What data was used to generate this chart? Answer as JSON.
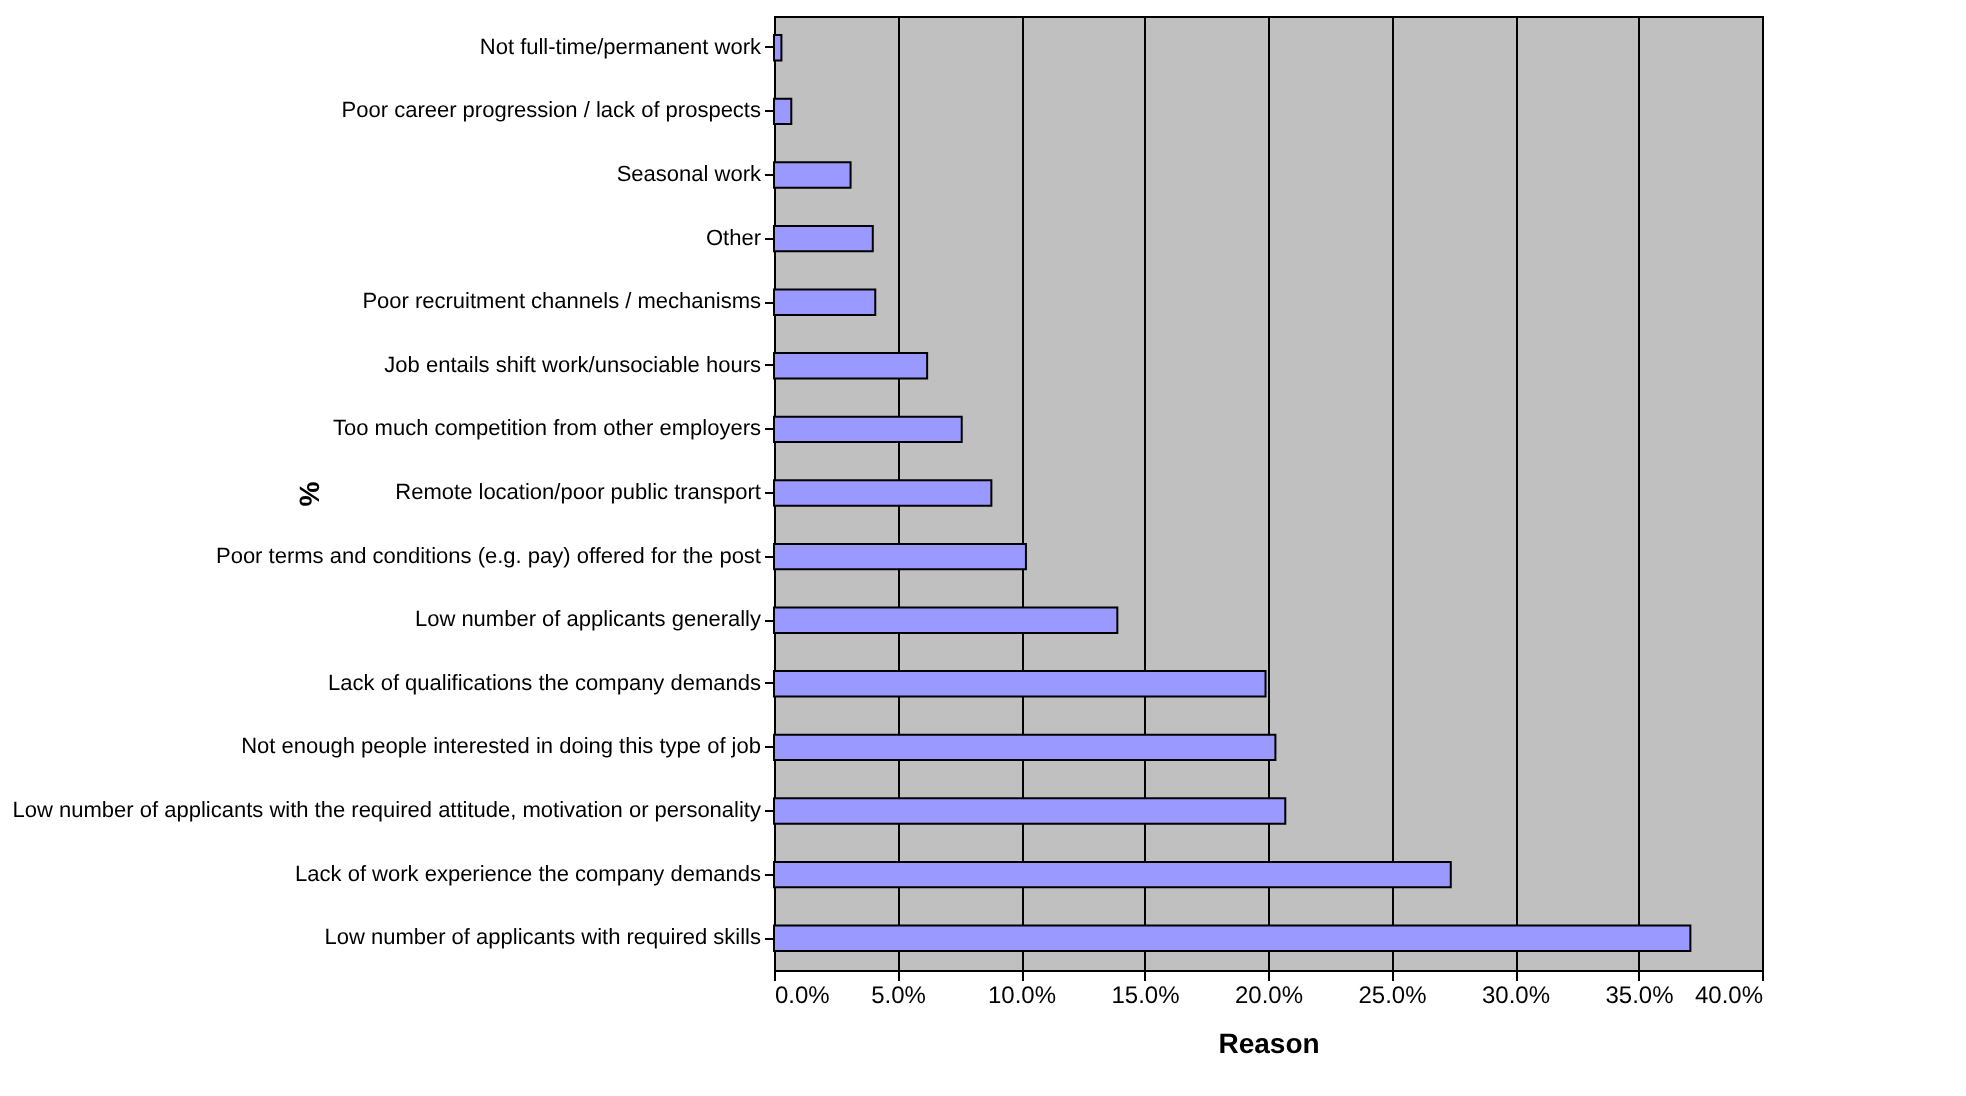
{
  "chart_data": {
    "type": "bar",
    "orientation": "horizontal",
    "xlabel": "Reason",
    "ylabel": "%",
    "categories": [
      "Not full-time/permanent work",
      "Poor career progression / lack of prospects",
      "Seasonal work",
      "Other",
      "Poor recruitment channels / mechanisms",
      "Job entails shift work/unsociable hours ",
      "Too much competition from other employers",
      "Remote location/poor public transport",
      "Poor terms and conditions (e.g. pay) offered for the post",
      "Low number of applicants generally",
      "Lack of qualifications the company demands",
      "Not enough people interested in doing this type of job",
      "Low number of applicants with the required attitude, motivation or personality",
      "Lack of work experience the company demands",
      "Low number of applicants with required skills"
    ],
    "values": [
      0.3,
      0.7,
      3.1,
      4.0,
      4.1,
      6.2,
      7.6,
      8.8,
      10.2,
      13.9,
      19.9,
      20.3,
      20.7,
      27.4,
      37.1
    ],
    "color": "#9999ff",
    "xlim": [
      0,
      40
    ],
    "xticks": [
      {
        "value": 0,
        "label": "0.0%"
      },
      {
        "value": 5,
        "label": "5.0%"
      },
      {
        "value": 10,
        "label": "10.0%"
      },
      {
        "value": 15,
        "label": "15.0%"
      },
      {
        "value": 20,
        "label": "20.0%"
      },
      {
        "value": 25,
        "label": "25.0%"
      },
      {
        "value": 30,
        "label": "30.0%"
      },
      {
        "value": 35,
        "label": "35.0%"
      },
      {
        "value": 40,
        "label": "40.0%"
      }
    ],
    "grid": "x"
  }
}
